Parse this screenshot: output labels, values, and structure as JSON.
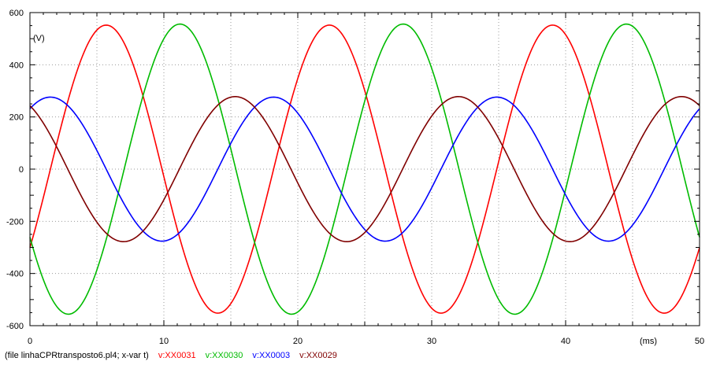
{
  "chart_data": {
    "type": "line",
    "x_unit": "(ms)",
    "y_unit": "(V)",
    "xlim": [
      0,
      50
    ],
    "ylim": [
      -600,
      600
    ],
    "x_ticks": [
      0,
      10,
      20,
      30,
      40,
      50
    ],
    "y_ticks": [
      -600,
      -400,
      -200,
      0,
      200,
      400,
      600
    ],
    "grid": true,
    "frequency_hz": 60,
    "sample_step_ms": 0.1,
    "series": [
      {
        "name": "v:XX0031",
        "color": "#ff0000",
        "amplitude": 552,
        "phase_deg": -123
      },
      {
        "name": "v:XX0030",
        "color": "#00bb00",
        "amplitude": 556,
        "phase_deg": 118
      },
      {
        "name": "v:XX0003",
        "color": "#0000ff",
        "amplitude": 276,
        "phase_deg": -33
      },
      {
        "name": "v:XX0029",
        "color": "#800000",
        "amplitude": 278,
        "phase_deg": 29
      }
    ]
  },
  "footer": {
    "file_text": "(file linhaCPRtransposto6.pl4; x-var t)",
    "legend": [
      "v:XX0031",
      "v:XX0030",
      "v:XX0003",
      "v:XX0029"
    ],
    "legend_colors": [
      "#ff0000",
      "#00bb00",
      "#0000ff",
      "#800000"
    ]
  }
}
